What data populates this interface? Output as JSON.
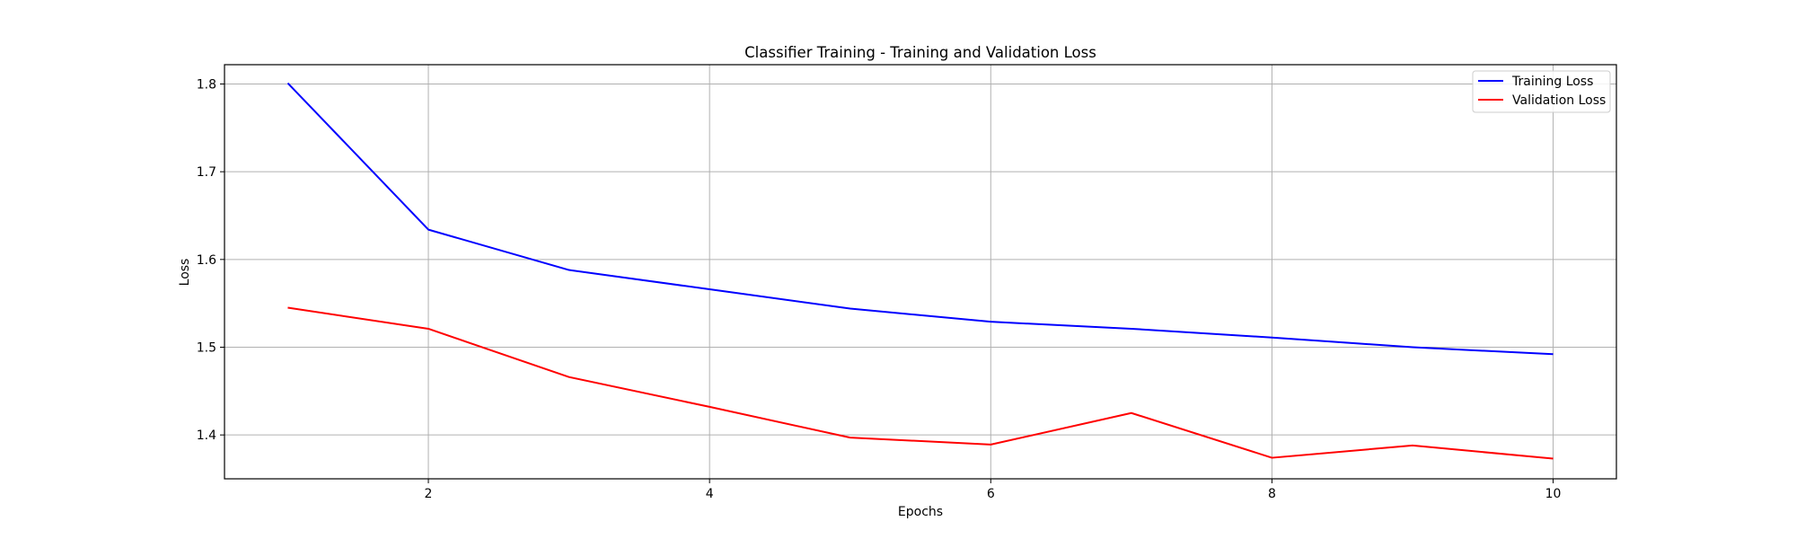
{
  "chart_data": {
    "type": "line",
    "title": "Classifier Training - Training and Validation Loss",
    "xlabel": "Epochs",
    "ylabel": "Loss",
    "x": [
      1,
      2,
      3,
      4,
      5,
      6,
      7,
      8,
      9,
      10
    ],
    "xlim": [
      0.55,
      10.45
    ],
    "ylim": [
      1.35,
      1.822
    ],
    "xticks": [
      2,
      4,
      6,
      8,
      10
    ],
    "yticks": [
      1.4,
      1.5,
      1.6,
      1.7,
      1.8
    ],
    "xtick_labels": [
      "2",
      "4",
      "6",
      "8",
      "10"
    ],
    "ytick_labels": [
      "1.4",
      "1.5",
      "1.6",
      "1.7",
      "1.8"
    ],
    "grid": true,
    "legend_position": "top-right",
    "series": [
      {
        "name": "Training Loss",
        "color": "#0000ff",
        "values": [
          1.801,
          1.634,
          1.588,
          1.566,
          1.544,
          1.529,
          1.521,
          1.511,
          1.5,
          1.492
        ]
      },
      {
        "name": "Validation Loss",
        "color": "#ff0000",
        "values": [
          1.545,
          1.521,
          1.466,
          1.432,
          1.397,
          1.389,
          1.425,
          1.374,
          1.388,
          1.373
        ]
      }
    ]
  }
}
